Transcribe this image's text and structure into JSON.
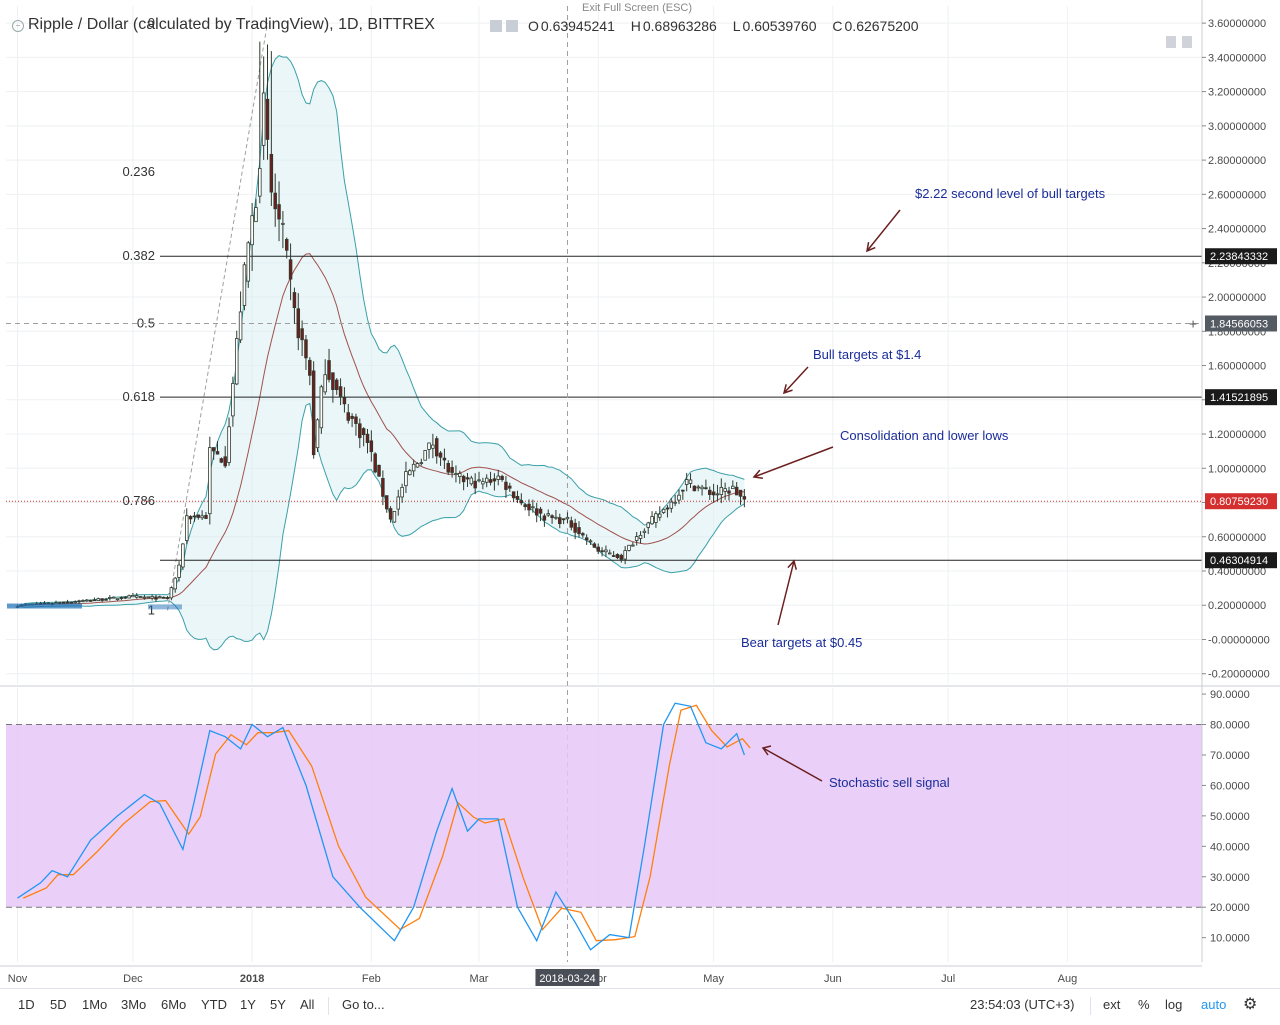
{
  "header": {
    "title": "Ripple / Dollar (calculated by TradingView), 1D, BITTREX",
    "exit_fullscreen": "Exit Full Screen (ESC)",
    "ohlc": [
      {
        "key": "O",
        "value": "0.63945241"
      },
      {
        "key": "H",
        "value": "0.68963286"
      },
      {
        "key": "L",
        "value": "0.60539760"
      },
      {
        "key": "C",
        "value": "0.62675200"
      }
    ]
  },
  "toolbar": {
    "ranges": [
      "1D",
      "5D",
      "1Mo",
      "3Mo",
      "6Mo",
      "YTD",
      "1Y",
      "5Y",
      "All"
    ],
    "goto": "Go to...",
    "time": "23:54:03 (UTC+3)",
    "ext": "ext",
    "percent": "%",
    "log": "log",
    "auto": "auto",
    "settings_icon": "gear-icon"
  },
  "colors": {
    "up": "#26a69a",
    "down": "#ef5350",
    "candle_up_fill": "#ffffff",
    "candle_outline": "#2f3a2f",
    "band_fill": "#d8eef2",
    "band_line": "#3aa0a8",
    "basis": "#a0524d",
    "stoch_k": "#2196f3",
    "stoch_d": "#ff7f0e",
    "stoch_zone": "#e6c8f7",
    "annotation": "#1a2c9a",
    "arrow": "#6b1f1f",
    "current_price": "#d32f2f"
  },
  "chart_data": [
    {
      "type": "candlestick",
      "y_axis_ticks": [
        "3.60000000",
        "3.40000000",
        "3.20000000",
        "3.00000000",
        "2.80000000",
        "2.60000000",
        "2.40000000",
        "2.20000000",
        "2.00000000",
        "1.80000000",
        "1.60000000",
        "1.40000000",
        "1.20000000",
        "1.00000000",
        "0.80000000",
        "0.60000000",
        "0.40000000",
        "0.20000000",
        "-0.00000000",
        "-0.20000000"
      ],
      "ylim": [
        -0.26,
        3.7
      ],
      "x_ticks": [
        "Nov",
        "Dec",
        "2018",
        "Feb",
        "Mar",
        "Apr",
        "May",
        "Jun",
        "Jul",
        "Aug"
      ],
      "crosshair_date": "2018-03-24",
      "fib_levels": [
        {
          "label": "0",
          "value": 3.6
        },
        {
          "label": "0.236",
          "value": 2.73
        },
        {
          "label": "0.382",
          "value": 2.23843332
        },
        {
          "label": "0.5",
          "value": 1.84566053
        },
        {
          "label": "0.618",
          "value": 1.41521895
        },
        {
          "label": "0.786",
          "value": 0.81
        },
        {
          "label": "1",
          "value": 0.17
        }
      ],
      "price_labels": [
        {
          "text": "2.23843332",
          "value": 2.23843332,
          "style": "dark"
        },
        {
          "text": "1.84566053",
          "value": 1.84566053,
          "style": "grey"
        },
        {
          "text": "1.41521895",
          "value": 1.41521895,
          "style": "dark"
        },
        {
          "text": "0.80759230",
          "value": 0.8075923,
          "style": "red"
        },
        {
          "text": "0.46304914",
          "value": 0.46304914,
          "style": "dark"
        }
      ],
      "horizontal_lines": [
        2.23843332,
        1.41521895,
        0.46304914
      ],
      "annotations": [
        {
          "text": "$2.22 second level of bull targets"
        },
        {
          "text": "Bull targets at $1.4"
        },
        {
          "text": "Consolidation and lower lows"
        },
        {
          "text": "Bear targets at $0.45"
        }
      ],
      "close_series": [
        {
          "date": "2017-11-01",
          "close": 0.2
        },
        {
          "date": "2017-11-15",
          "close": 0.22
        },
        {
          "date": "2017-12-01",
          "close": 0.25
        },
        {
          "date": "2017-12-10",
          "close": 0.24
        },
        {
          "date": "2017-12-13",
          "close": 0.42
        },
        {
          "date": "2017-12-15",
          "close": 0.72
        },
        {
          "date": "2017-12-20",
          "close": 0.72
        },
        {
          "date": "2017-12-21",
          "close": 1.1
        },
        {
          "date": "2017-12-25",
          "close": 1.05
        },
        {
          "date": "2017-12-29",
          "close": 1.95
        },
        {
          "date": "2017-12-31",
          "close": 2.3
        },
        {
          "date": "2018-01-02",
          "close": 2.6
        },
        {
          "date": "2018-01-04",
          "close": 3.1
        },
        {
          "date": "2018-01-06",
          "close": 2.6
        },
        {
          "date": "2018-01-09",
          "close": 2.35
        },
        {
          "date": "2018-01-12",
          "close": 1.9
        },
        {
          "date": "2018-01-16",
          "close": 1.55
        },
        {
          "date": "2018-01-17",
          "close": 1.1
        },
        {
          "date": "2018-01-20",
          "close": 1.6
        },
        {
          "date": "2018-01-25",
          "close": 1.35
        },
        {
          "date": "2018-01-31",
          "close": 1.15
        },
        {
          "date": "2018-02-06",
          "close": 0.7
        },
        {
          "date": "2018-02-10",
          "close": 0.95
        },
        {
          "date": "2018-02-17",
          "close": 1.15
        },
        {
          "date": "2018-02-22",
          "close": 0.95
        },
        {
          "date": "2018-03-01",
          "close": 0.91
        },
        {
          "date": "2018-03-06",
          "close": 0.95
        },
        {
          "date": "2018-03-12",
          "close": 0.8
        },
        {
          "date": "2018-03-18",
          "close": 0.72
        },
        {
          "date": "2018-03-24",
          "close": 0.69
        },
        {
          "date": "2018-04-01",
          "close": 0.52
        },
        {
          "date": "2018-04-07",
          "close": 0.48
        },
        {
          "date": "2018-04-12",
          "close": 0.63
        },
        {
          "date": "2018-04-20",
          "close": 0.8
        },
        {
          "date": "2018-04-24",
          "close": 0.92
        },
        {
          "date": "2018-05-01",
          "close": 0.85
        },
        {
          "date": "2018-05-06",
          "close": 0.88
        },
        {
          "date": "2018-05-09",
          "close": 0.81
        }
      ]
    },
    {
      "type": "line",
      "name": "Stochastic",
      "y_axis_ticks": [
        "90.0000",
        "80.0000",
        "70.0000",
        "60.0000",
        "50.0000",
        "40.0000",
        "30.0000",
        "20.0000",
        "10.0000"
      ],
      "ylim": [
        2,
        92
      ],
      "overbought": 80,
      "oversold": 20,
      "annotation": "Stochastic sell signal",
      "k_series": [
        {
          "date": "2017-11-01",
          "value": 23
        },
        {
          "date": "2017-11-07",
          "value": 28
        },
        {
          "date": "2017-11-10",
          "value": 32
        },
        {
          "date": "2017-11-14",
          "value": 30
        },
        {
          "date": "2017-11-20",
          "value": 42
        },
        {
          "date": "2017-11-27",
          "value": 50
        },
        {
          "date": "2017-12-04",
          "value": 57
        },
        {
          "date": "2017-12-08",
          "value": 54
        },
        {
          "date": "2017-12-14",
          "value": 39
        },
        {
          "date": "2017-12-17",
          "value": 55
        },
        {
          "date": "2017-12-21",
          "value": 78
        },
        {
          "date": "2017-12-25",
          "value": 76
        },
        {
          "date": "2017-12-29",
          "value": 72
        },
        {
          "date": "2018-01-01",
          "value": 80
        },
        {
          "date": "2018-01-05",
          "value": 76
        },
        {
          "date": "2018-01-09",
          "value": 79
        },
        {
          "date": "2018-01-15",
          "value": 60
        },
        {
          "date": "2018-01-22",
          "value": 30
        },
        {
          "date": "2018-01-29",
          "value": 20
        },
        {
          "date": "2018-02-07",
          "value": 9
        },
        {
          "date": "2018-02-12",
          "value": 20
        },
        {
          "date": "2018-02-18",
          "value": 45
        },
        {
          "date": "2018-02-22",
          "value": 59
        },
        {
          "date": "2018-02-26",
          "value": 45
        },
        {
          "date": "2018-03-01",
          "value": 49
        },
        {
          "date": "2018-03-06",
          "value": 49
        },
        {
          "date": "2018-03-11",
          "value": 20
        },
        {
          "date": "2018-03-16",
          "value": 9
        },
        {
          "date": "2018-03-21",
          "value": 25
        },
        {
          "date": "2018-03-26",
          "value": 15
        },
        {
          "date": "2018-03-30",
          "value": 6
        },
        {
          "date": "2018-04-04",
          "value": 11
        },
        {
          "date": "2018-04-09",
          "value": 10
        },
        {
          "date": "2018-04-13",
          "value": 40
        },
        {
          "date": "2018-04-18",
          "value": 80
        },
        {
          "date": "2018-04-21",
          "value": 87
        },
        {
          "date": "2018-04-25",
          "value": 86
        },
        {
          "date": "2018-04-29",
          "value": 74
        },
        {
          "date": "2018-05-03",
          "value": 72
        },
        {
          "date": "2018-05-07",
          "value": 77
        },
        {
          "date": "2018-05-09",
          "value": 70
        }
      ]
    }
  ]
}
